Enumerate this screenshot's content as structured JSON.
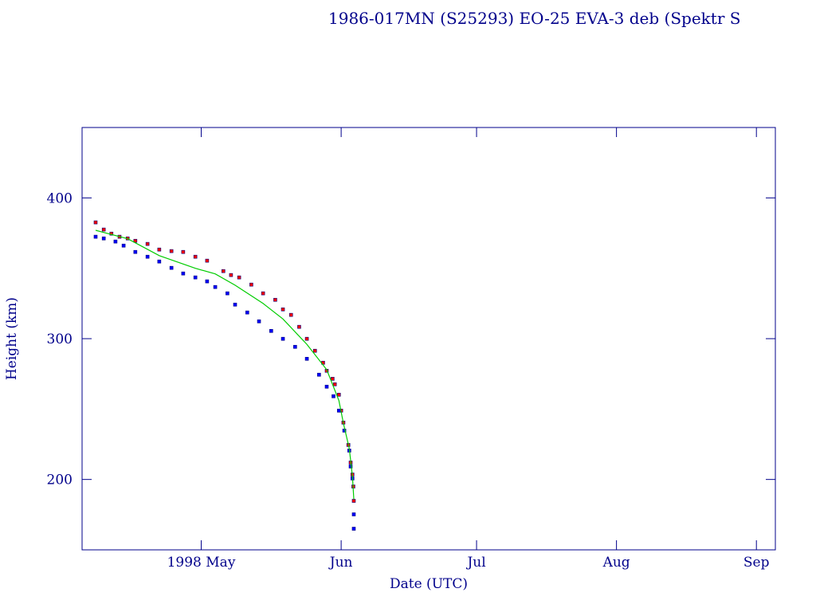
{
  "chart_data": {
    "type": "scatter",
    "title": "1986-017MN (S25293) EO-25 EVA-3 deb (Spektr S",
    "x_label": "Date (UTC)",
    "y_label": "Height (km)",
    "xlim": [
      94.6,
      248.2
    ],
    "ylim": [
      150,
      450
    ],
    "xticks": [
      {
        "value": 121,
        "label": "1998 May"
      },
      {
        "value": 152,
        "label": "Jun"
      },
      {
        "value": 182,
        "label": "Jul"
      },
      {
        "value": 213,
        "label": "Aug"
      },
      {
        "value": 244,
        "label": "Sep"
      }
    ],
    "yticks": [
      200,
      300,
      400
    ],
    "series": [
      {
        "color": "#ff0000",
        "style": "markers",
        "x": [
          97.6,
          99.4,
          101.1,
          102.9,
          104.7,
          106.4,
          109.1,
          111.7,
          114.4,
          117.0,
          119.7,
          122.3,
          125.9,
          127.6,
          129.4,
          132.1,
          134.7,
          137.4,
          139.1,
          140.9,
          142.7,
          144.4,
          146.2,
          148.0,
          148.8,
          150.1,
          150.6,
          151.5,
          152.0,
          152.5,
          153.6,
          154.1,
          154.5,
          154.7,
          154.8
        ],
        "values": [
          382.6,
          377.5,
          374.6,
          372.4,
          371.2,
          369.5,
          367.3,
          363.3,
          362.2,
          361.6,
          358.2,
          355.4,
          348.0,
          345.2,
          343.5,
          338.4,
          332.2,
          327.6,
          320.8,
          316.9,
          308.4,
          299.9,
          291.4,
          282.9,
          277.2,
          271.5,
          267.6,
          260.2,
          248.9,
          240.4,
          224.5,
          212.0,
          203.5,
          195.0,
          184.8
        ]
      },
      {
        "color": "#0000ff",
        "style": "markers",
        "x": [
          97.6,
          99.4,
          102.0,
          103.8,
          106.4,
          109.1,
          111.7,
          114.4,
          117.0,
          119.7,
          122.3,
          124.1,
          126.8,
          128.5,
          131.2,
          133.8,
          136.5,
          139.1,
          141.8,
          144.4,
          147.1,
          148.8,
          150.3,
          151.5,
          152.7,
          153.8,
          154.1,
          154.5,
          154.8,
          154.8
        ],
        "values": [
          372.4,
          371.2,
          369.0,
          366.1,
          361.6,
          358.2,
          354.8,
          350.3,
          346.3,
          343.5,
          340.7,
          336.7,
          332.2,
          324.2,
          318.6,
          312.3,
          305.5,
          299.9,
          294.2,
          285.7,
          274.4,
          265.9,
          259.1,
          248.9,
          234.7,
          220.5,
          209.2,
          200.7,
          175.2,
          165.0
        ]
      },
      {
        "color": "#00cc00",
        "style": "line",
        "x": [
          97.6,
          104.7,
          111.7,
          119.7,
          124.1,
          128.5,
          134.7,
          139.1,
          144.4,
          148.8,
          151.5,
          152.5,
          153.8,
          154.5,
          154.8
        ],
        "values": [
          377.0,
          371.0,
          359.0,
          350.0,
          346.0,
          338.0,
          325.0,
          314.0,
          296.0,
          278.0,
          256.0,
          240.0,
          222.0,
          202.0,
          186.0
        ]
      }
    ]
  }
}
